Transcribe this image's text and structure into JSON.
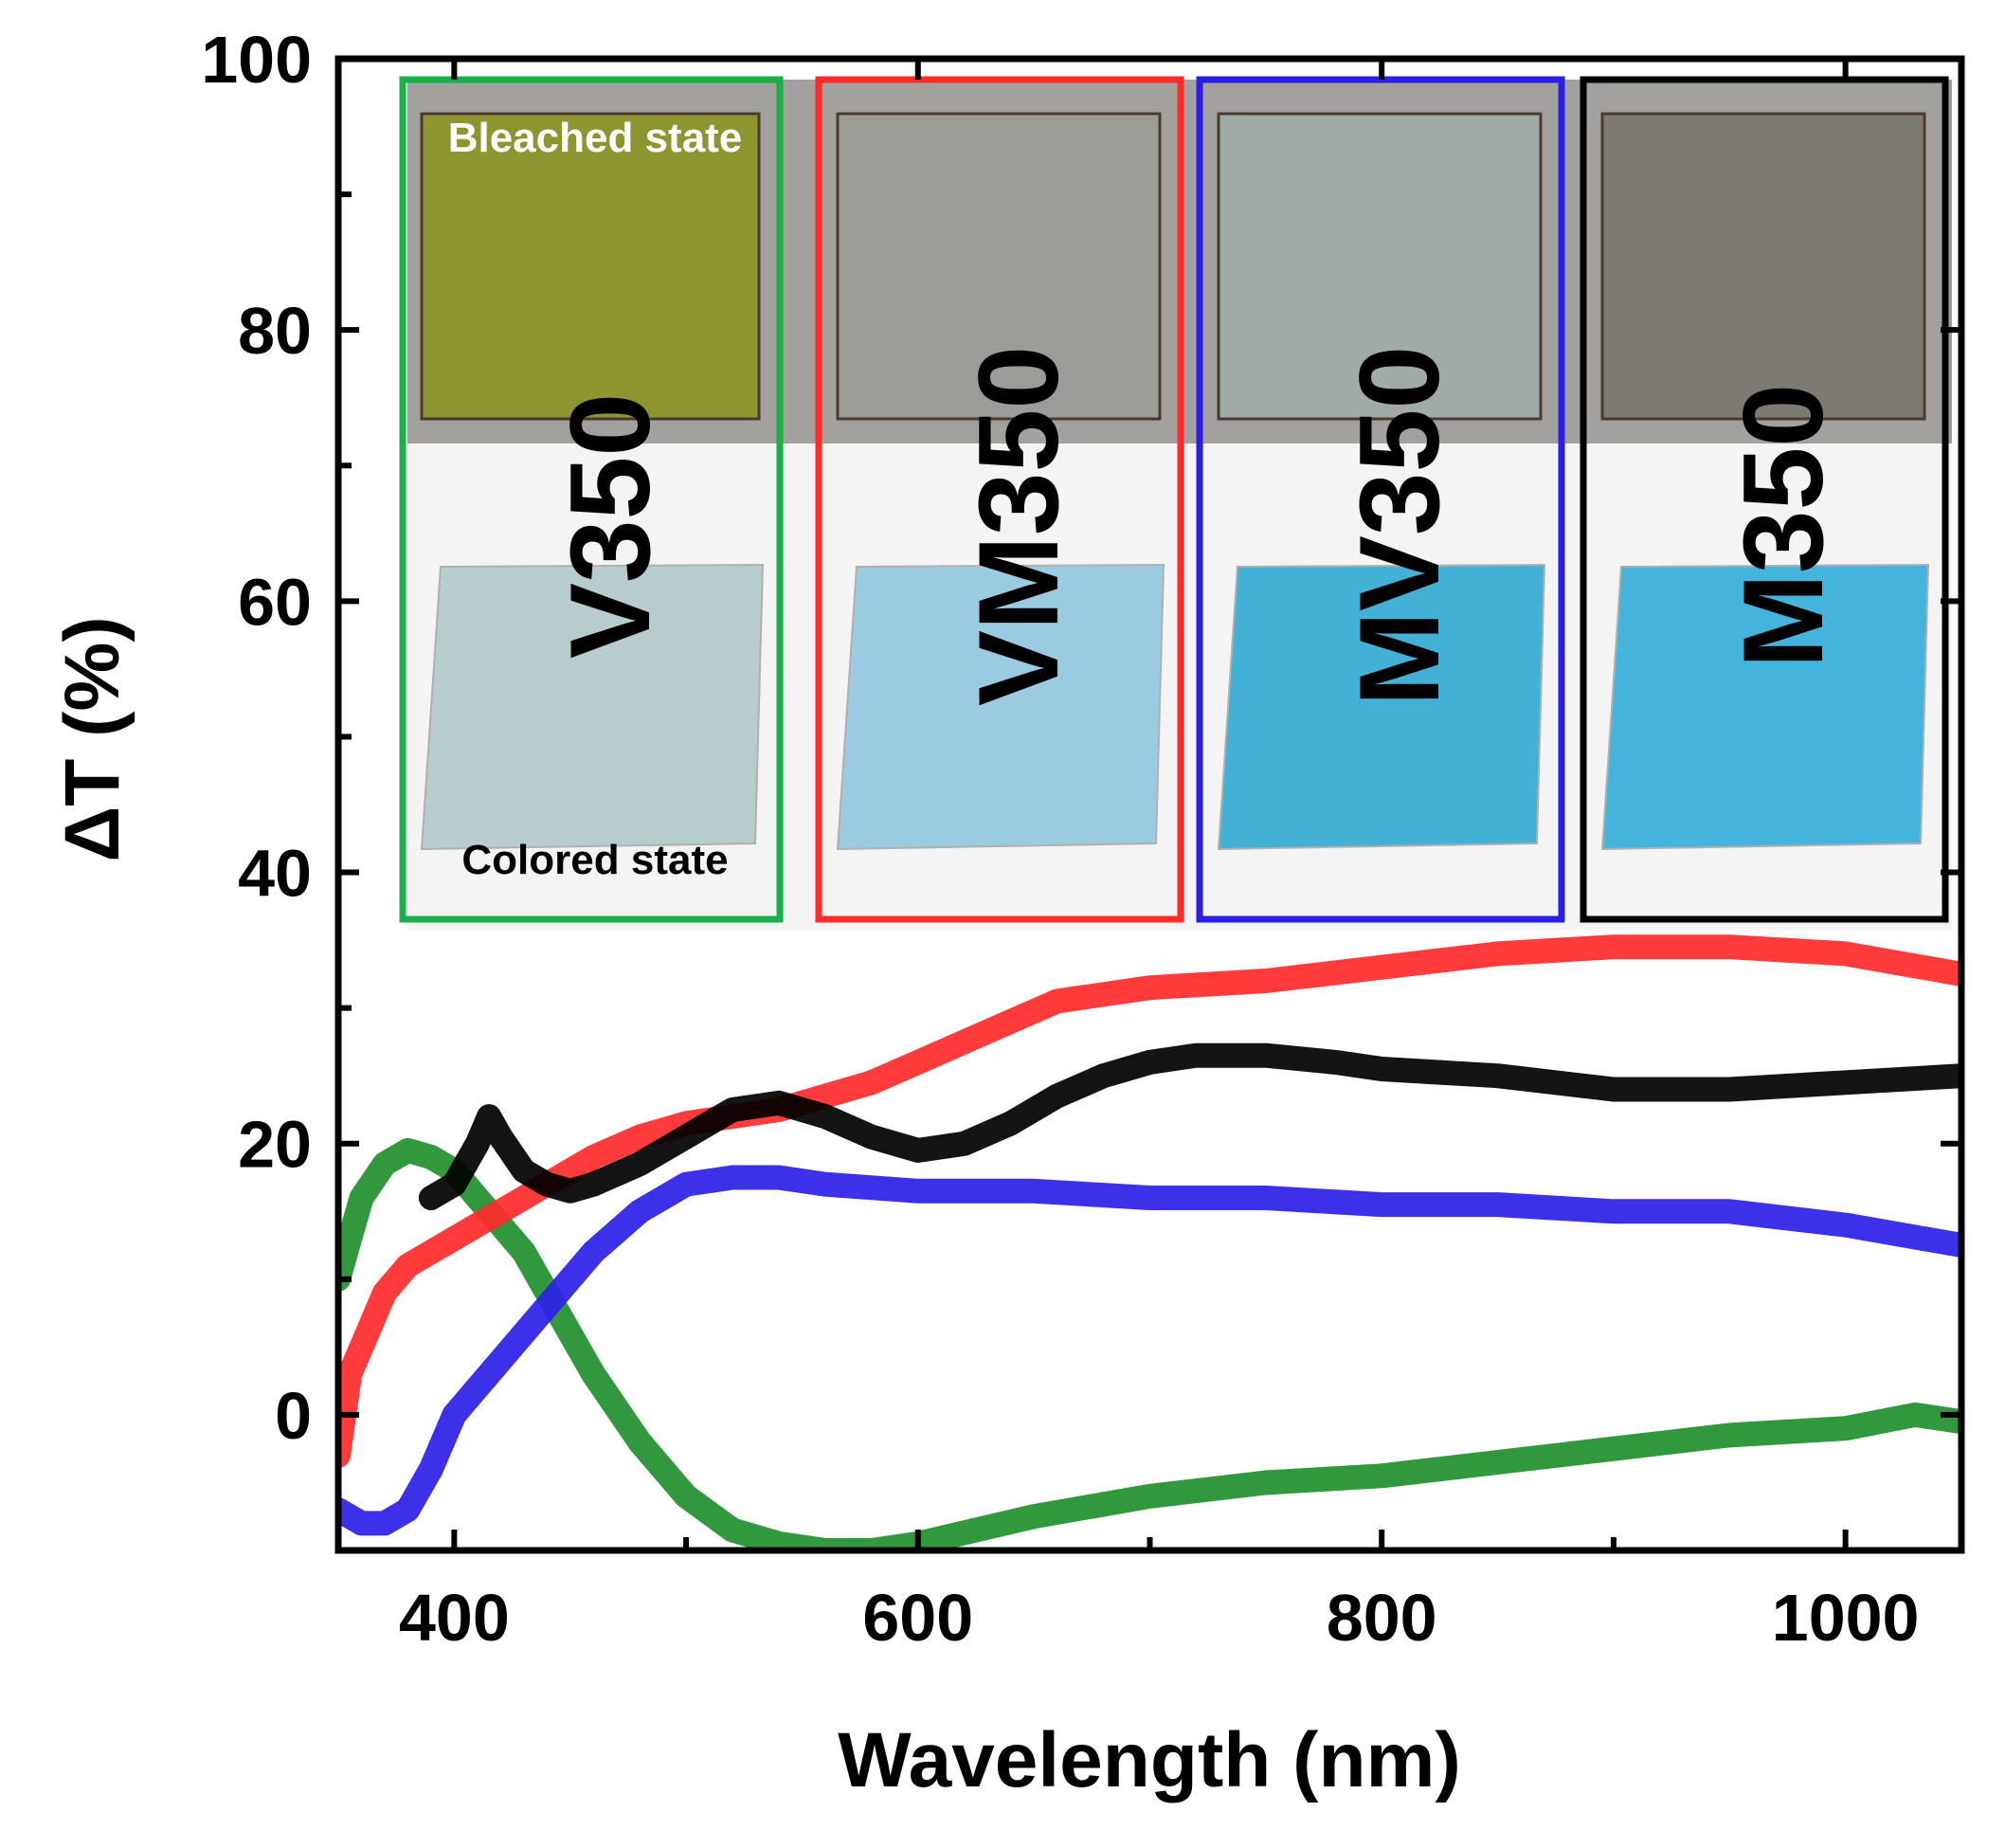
{
  "chart_data": {
    "type": "line",
    "title": "",
    "xlabel": "Wavelength (nm)",
    "ylabel": "ΔT (%)",
    "xlim": [
      350,
      1050
    ],
    "ylim": [
      -10,
      100
    ],
    "xticks": [
      400,
      600,
      800,
      1000
    ],
    "xtick_labels": [
      "400",
      "600",
      "800",
      "1000"
    ],
    "yticks": [
      0,
      20,
      40,
      60,
      80,
      100
    ],
    "ytick_labels": [
      "0",
      "20",
      "40",
      "60",
      "80",
      "100"
    ],
    "grid": false,
    "series": [
      {
        "name": "V350",
        "color": "#1f8f2c",
        "x": [
          350,
          360,
          370,
          380,
          390,
          400,
          410,
          420,
          430,
          440,
          460,
          480,
          500,
          520,
          540,
          560,
          580,
          600,
          650,
          700,
          750,
          800,
          850,
          900,
          950,
          1000,
          1030,
          1050
        ],
        "y": [
          10,
          16,
          18.5,
          19.5,
          19,
          18,
          16,
          14,
          12,
          9,
          3,
          -2,
          -6,
          -8.5,
          -9.5,
          -10,
          -10,
          -9.5,
          -7.5,
          -6,
          -5,
          -4.5,
          -3.5,
          -2.5,
          -1.5,
          -1,
          0,
          -0.5
        ]
      },
      {
        "name": "VM350",
        "color": "#ff2a2a",
        "x": [
          350,
          355,
          360,
          370,
          380,
          390,
          400,
          420,
          440,
          460,
          480,
          500,
          520,
          540,
          560,
          580,
          600,
          620,
          640,
          660,
          680,
          700,
          750,
          800,
          850,
          900,
          950,
          1000,
          1050
        ],
        "y": [
          -3,
          3,
          5,
          9,
          11,
          12,
          13,
          15,
          17,
          19,
          20.5,
          21.5,
          22,
          22.5,
          23.5,
          24.5,
          26,
          27.5,
          29,
          30.5,
          31,
          31.5,
          32,
          33,
          34,
          34.5,
          34.5,
          34,
          32.5
        ]
      },
      {
        "name": "MV350",
        "color": "#2b1fe6",
        "x": [
          350,
          360,
          370,
          380,
          390,
          400,
          410,
          420,
          440,
          460,
          480,
          500,
          520,
          540,
          560,
          600,
          650,
          700,
          750,
          800,
          850,
          900,
          950,
          1000,
          1050
        ],
        "y": [
          -7,
          -8,
          -8,
          -7,
          -4,
          0,
          2,
          4,
          8,
          12,
          15,
          17,
          17.5,
          17.5,
          17,
          16.5,
          16.5,
          16,
          16,
          15.5,
          15.5,
          15,
          15,
          14,
          12.5
        ]
      },
      {
        "name": "M350",
        "color": "#000000",
        "x": [
          390,
          400,
          410,
          415,
          420,
          430,
          440,
          450,
          460,
          480,
          500,
          520,
          540,
          560,
          580,
          600,
          620,
          640,
          660,
          680,
          700,
          720,
          750,
          780,
          800,
          850,
          900,
          950,
          1000,
          1050
        ],
        "y": [
          16,
          17,
          20,
          22,
          20.5,
          18,
          17,
          16.5,
          17,
          18.5,
          20.5,
          22.5,
          23,
          22,
          20.5,
          19.5,
          20,
          21.5,
          23.5,
          25,
          26,
          26.5,
          26.5,
          26,
          25.5,
          25,
          24,
          24,
          24.5,
          25
        ]
      }
    ],
    "inset": {
      "top_label": "Bleached state",
      "bottom_label": "Colored state",
      "samples": [
        {
          "label": "V350",
          "frame_color": "#19b04a",
          "bleached_color": "#8c9530",
          "colored_color": "#b6cccd"
        },
        {
          "label": "VM350",
          "frame_color": "#ff2a2a",
          "bleached_color": "#9a9c95",
          "colored_color": "#9bcbe0"
        },
        {
          "label": "MV350",
          "frame_color": "#2b1fe6",
          "bleached_color": "#a0aaa6",
          "colored_color": "#43b0d6"
        },
        {
          "label": "M350",
          "frame_color": "#000000",
          "bleached_color": "#7c7a73",
          "colored_color": "#44b4dc"
        }
      ]
    }
  }
}
